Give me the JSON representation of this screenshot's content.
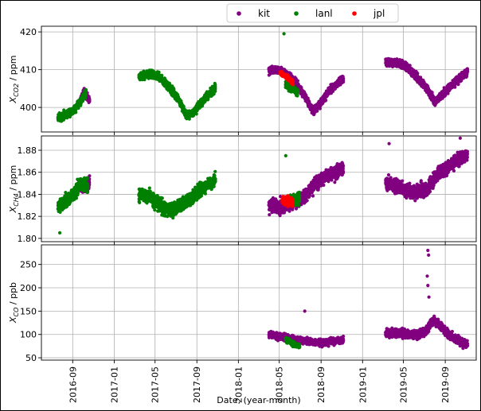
{
  "figure": {
    "xlabel": "Date, (year-month)",
    "x_tick_labels": [
      "2016-09",
      "2017-01",
      "2017-05",
      "2017-09",
      "2018-01",
      "2018-05",
      "2018-09",
      "2019-01",
      "2019-05",
      "2019-09"
    ]
  },
  "legend": {
    "placement": "top-center",
    "entries": [
      {
        "name": "kit",
        "color": "#800080"
      },
      {
        "name": "lanl",
        "color": "#008000"
      },
      {
        "name": "jpl",
        "color": "#ff0000"
      }
    ]
  },
  "chart_data": [
    {
      "type": "scatter",
      "panel": "co2",
      "ylabel_main": "X",
      "ylabel_sub": "CO2",
      "ylabel_unit": " / ppm",
      "ylim": [
        393.5,
        421.5
      ],
      "y_ticks": [
        400,
        410,
        420
      ],
      "grid": true,
      "series": [
        {
          "name": "kit",
          "color": "#800080",
          "segments": [
            {
              "x": [
                "2016-09-20",
                "2016-10-05",
                "2016-10-20"
              ],
              "y": [
                401,
                404,
                402
              ],
              "noise": 1.0,
              "density": 5
            },
            {
              "x": [
                "2018-04-01",
                "2018-04-25",
                "2018-05-20",
                "2018-06-15",
                "2018-07-15",
                "2018-08-10",
                "2018-09-05",
                "2018-10-01",
                "2018-11-05"
              ],
              "y": [
                410,
                410,
                409,
                407,
                403,
                399,
                402,
                405,
                407.5
              ],
              "noise": 1.0,
              "density": 5
            },
            {
              "x": [
                "2019-03-10",
                "2019-04-10",
                "2019-05-10",
                "2019-06-10",
                "2019-07-10",
                "2019-08-01",
                "2019-08-20",
                "2019-09-15",
                "2019-10-15",
                "2019-11-05"
              ],
              "y": [
                412,
                412,
                411,
                408,
                405,
                401.5,
                403,
                405.5,
                408,
                409.5
              ],
              "noise": 1.0,
              "density": 5
            }
          ]
        },
        {
          "name": "lanl",
          "color": "#008000",
          "segments": [
            {
              "x": [
                "2016-07-20",
                "2016-08-10",
                "2016-09-01",
                "2016-09-20",
                "2016-10-10"
              ],
              "y": [
                397,
                398,
                399,
                401,
                404
              ],
              "noise": 1.0,
              "density": 5
            },
            {
              "x": [
                "2017-03-15",
                "2017-04-15",
                "2017-05-15",
                "2017-06-15",
                "2017-07-10",
                "2017-08-01",
                "2017-08-20",
                "2017-09-20",
                "2017-10-25"
              ],
              "y": [
                408,
                409,
                408,
                405,
                402,
                398,
                398.5,
                402,
                405
              ],
              "noise": 1.0,
              "density": 5
            },
            {
              "x": [
                "2018-05-20",
                "2018-06-10",
                "2018-06-25"
              ],
              "y": [
                406,
                405,
                404
              ],
              "noise": 1.0,
              "density": 5
            }
          ]
        },
        {
          "name": "jpl",
          "color": "#ff0000",
          "segments": [
            {
              "x": [
                "2018-05-05",
                "2018-05-25",
                "2018-06-10"
              ],
              "y": [
                409,
                408,
                406.5
              ],
              "noise": 0.6,
              "density": 6
            }
          ]
        }
      ],
      "outliers": [
        {
          "series": "lanl",
          "x": "2018-05-15",
          "y": 419.5
        }
      ]
    },
    {
      "type": "scatter",
      "panel": "ch4",
      "ylabel_main": "X",
      "ylabel_sub": "CH4",
      "ylabel_unit": " / ppm",
      "ylim": [
        1.797,
        1.893
      ],
      "y_ticks": [
        1.8,
        1.82,
        1.84,
        1.86,
        1.88
      ],
      "y_tick_labels": [
        "1.80",
        "1.82",
        "1.84",
        "1.86",
        "1.88"
      ],
      "grid": true,
      "series": [
        {
          "name": "kit",
          "color": "#800080",
          "segments": [
            {
              "x": [
                "2016-09-25",
                "2016-10-20"
              ],
              "y": [
                1.845,
                1.85
              ],
              "noise": 0.006,
              "density": 5
            },
            {
              "x": [
                "2018-04-01",
                "2018-05-01",
                "2018-06-01",
                "2018-07-01",
                "2018-07-20",
                "2018-08-15",
                "2018-09-15",
                "2018-10-15",
                "2018-11-05"
              ],
              "y": [
                1.83,
                1.828,
                1.832,
                1.835,
                1.84,
                1.85,
                1.856,
                1.86,
                1.865
              ],
              "noise": 0.006,
              "density": 5
            },
            {
              "x": [
                "2019-03-10",
                "2019-04-10",
                "2019-05-10",
                "2019-06-10",
                "2019-07-10",
                "2019-08-10",
                "2019-09-10",
                "2019-10-10",
                "2019-11-05"
              ],
              "y": [
                1.85,
                1.848,
                1.843,
                1.842,
                1.845,
                1.858,
                1.865,
                1.872,
                1.875
              ],
              "noise": 0.006,
              "density": 5
            }
          ]
        },
        {
          "name": "lanl",
          "color": "#008000",
          "segments": [
            {
              "x": [
                "2016-07-20",
                "2016-08-15",
                "2016-09-05",
                "2016-09-25",
                "2016-10-15"
              ],
              "y": [
                1.828,
                1.835,
                1.84,
                1.85,
                1.848
              ],
              "noise": 0.006,
              "density": 5
            },
            {
              "x": [
                "2017-03-15",
                "2017-04-15",
                "2017-05-15",
                "2017-06-15",
                "2017-07-15",
                "2017-08-15",
                "2017-09-15",
                "2017-10-25"
              ],
              "y": [
                1.84,
                1.838,
                1.83,
                1.825,
                1.83,
                1.837,
                1.845,
                1.853
              ],
              "noise": 0.006,
              "density": 5
            },
            {
              "x": [
                "2018-05-25",
                "2018-06-15",
                "2018-06-30"
              ],
              "y": [
                1.835,
                1.835,
                1.836
              ],
              "noise": 0.005,
              "density": 5
            }
          ]
        },
        {
          "name": "jpl",
          "color": "#ff0000",
          "segments": [
            {
              "x": [
                "2018-05-10",
                "2018-06-10"
              ],
              "y": [
                1.835,
                1.833
              ],
              "noise": 0.004,
              "density": 8
            }
          ]
        }
      ],
      "outliers": [
        {
          "series": "lanl",
          "x": "2016-07-25",
          "y": 1.805
        },
        {
          "series": "lanl",
          "x": "2018-05-20",
          "y": 1.875
        },
        {
          "series": "kit",
          "x": "2019-03-20",
          "y": 1.886
        },
        {
          "series": "kit",
          "x": "2019-10-15",
          "y": 1.891
        }
      ]
    },
    {
      "type": "scatter",
      "panel": "co",
      "ylabel_main": "X",
      "ylabel_sub": "CO",
      "ylabel_unit": " / ppb",
      "ylim": [
        45,
        292
      ],
      "y_ticks": [
        50,
        100,
        150,
        200,
        250
      ],
      "grid": true,
      "series": [
        {
          "name": "kit",
          "color": "#800080",
          "segments": [
            {
              "x": [
                "2018-04-01",
                "2018-05-01",
                "2018-06-01",
                "2018-07-01",
                "2018-08-01",
                "2018-09-01",
                "2018-10-01",
                "2018-11-05"
              ],
              "y": [
                100,
                95,
                92,
                88,
                85,
                82,
                85,
                88
              ],
              "noise": 7,
              "density": 5
            },
            {
              "x": [
                "2019-03-10",
                "2019-04-10",
                "2019-05-10",
                "2019-06-10",
                "2019-07-10",
                "2019-07-25",
                "2019-08-10",
                "2019-09-10",
                "2019-10-10",
                "2019-11-05"
              ],
              "y": [
                103,
                103,
                102,
                98,
                110,
                130,
                125,
                100,
                88,
                80
              ],
              "noise": 9,
              "density": 5
            }
          ]
        },
        {
          "name": "lanl",
          "color": "#008000",
          "segments": [
            {
              "x": [
                "2018-05-20",
                "2018-06-10",
                "2018-06-30"
              ],
              "y": [
                90,
                80,
                75
              ],
              "noise": 5,
              "density": 5
            }
          ]
        },
        {
          "name": "jpl",
          "color": "#ff0000",
          "segments": []
        }
      ],
      "outliers": [
        {
          "series": "kit",
          "x": "2019-07-12",
          "y": 280
        },
        {
          "series": "kit",
          "x": "2019-07-14",
          "y": 270
        },
        {
          "series": "kit",
          "x": "2019-07-10",
          "y": 225
        },
        {
          "series": "kit",
          "x": "2019-07-12",
          "y": 205
        },
        {
          "series": "kit",
          "x": "2019-07-15",
          "y": 180
        },
        {
          "series": "kit",
          "x": "2018-07-15",
          "y": 150
        }
      ]
    }
  ]
}
